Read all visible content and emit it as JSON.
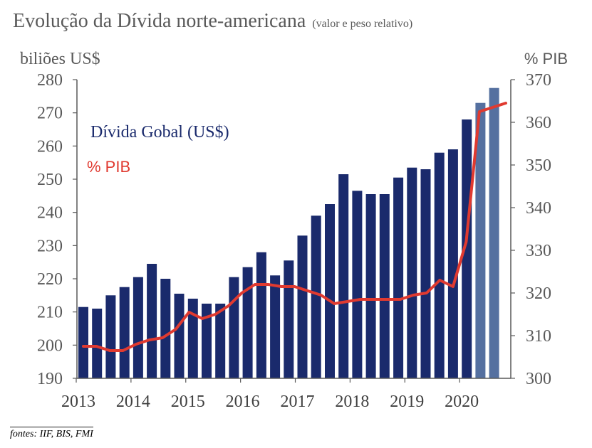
{
  "title": "Evolução da Dívida norte-americana",
  "subtitle": "(valor e peso relativo)",
  "footer": "fontes: IIF, BIS, FMI",
  "chart_data": {
    "type": "bar",
    "left_axis_label": "biliões US$",
    "right_axis_label": "% PIB",
    "ylim": [
      190,
      280
    ],
    "y2lim": [
      300,
      370
    ],
    "yticks": [
      190,
      200,
      210,
      220,
      230,
      240,
      250,
      260,
      270,
      280
    ],
    "y2ticks": [
      300,
      310,
      320,
      330,
      340,
      350,
      360,
      370
    ],
    "x_tick_labels": [
      "2013",
      "2014",
      "2015",
      "2016",
      "2017",
      "2018",
      "2019",
      "2020"
    ],
    "colors": {
      "bar": "#1a2a6c",
      "bar_projected": "#5570a0",
      "line": "#e03a30",
      "axis": "#595959"
    },
    "series": [
      {
        "name": "Dívida Gobal (US$)",
        "type": "bar",
        "axis": "left",
        "values": [
          211.5,
          211,
          215,
          217.5,
          220.5,
          224.5,
          220,
          215.5,
          214,
          212.5,
          212.5,
          220.5,
          223.5,
          228,
          221,
          225.5,
          233,
          239,
          242.5,
          251.5,
          246.5,
          245.5,
          245.5,
          250.5,
          253.5,
          253,
          258,
          259,
          268,
          273,
          277.5
        ],
        "projected_from_index": 29
      },
      {
        "name": "% PIB",
        "type": "line",
        "axis": "right",
        "values": [
          307.5,
          307.5,
          306.5,
          306.5,
          308,
          309,
          309.5,
          311.5,
          315.5,
          314,
          315,
          317,
          320,
          322,
          322,
          321.5,
          321.5,
          320.5,
          319.5,
          317.5,
          318,
          318.5,
          318.5,
          318.5,
          318.5,
          319.5,
          320,
          323,
          321.5,
          332,
          362.5,
          363.5,
          364.5
        ]
      }
    ],
    "grid": false
  }
}
